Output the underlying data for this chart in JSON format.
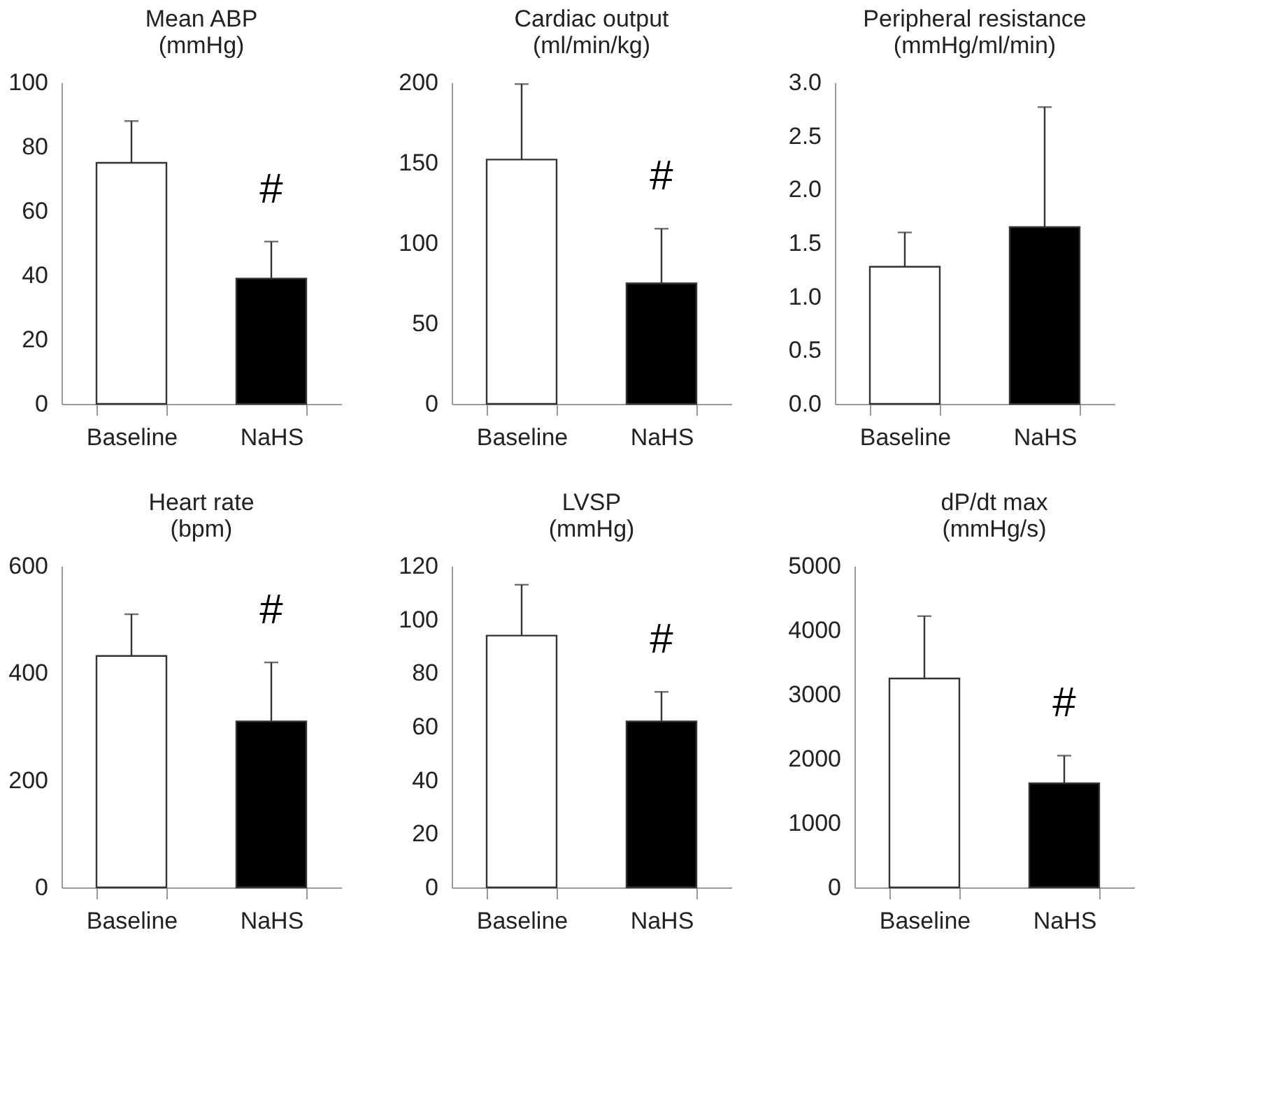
{
  "chart_data": [
    {
      "type": "bar",
      "title": "Mean ABP",
      "subtitle": "(mmHg)",
      "categories": [
        "Baseline",
        "NaHS"
      ],
      "values": [
        75,
        39
      ],
      "colors": [
        "#ffffff",
        "#000000"
      ],
      "errors": [
        [
          75,
          88
        ],
        [
          39,
          50.5
        ]
      ],
      "ylim": [
        0,
        100
      ],
      "yticks": [
        0,
        20,
        40,
        60,
        80,
        100
      ],
      "grid": false,
      "legend": false,
      "annotations": [
        "#"
      ]
    },
    {
      "type": "bar",
      "title": "Cardiac output",
      "subtitle": "(ml/min/kg)",
      "categories": [
        "Baseline",
        "NaHS"
      ],
      "values": [
        152,
        75
      ],
      "colors": [
        "#ffffff",
        "#000000"
      ],
      "errors": [
        [
          152,
          199
        ],
        [
          75,
          109
        ]
      ],
      "ylim": [
        0,
        200
      ],
      "yticks": [
        0,
        50,
        100,
        150,
        200
      ],
      "grid": false,
      "legend": false,
      "annotations": [
        "#"
      ]
    },
    {
      "type": "bar",
      "title": "Peripheral resistance",
      "subtitle": "(mmHg/ml/min)",
      "categories": [
        "Baseline",
        "NaHS"
      ],
      "values": [
        1.28,
        1.65
      ],
      "colors": [
        "#ffffff",
        "#000000"
      ],
      "errors": [
        [
          1.28,
          1.6
        ],
        [
          1.65,
          2.77
        ]
      ],
      "ylim": [
        0,
        3
      ],
      "yticks": [
        {
          "value": 0,
          "label": "0.0"
        },
        {
          "value": 0.5,
          "label": "0.5"
        },
        {
          "value": 1,
          "label": "1.0"
        },
        {
          "value": 1.5,
          "label": "1.5"
        },
        {
          "value": 2,
          "label": "2.0"
        },
        {
          "value": 2.5,
          "label": "2.5"
        },
        {
          "value": 3,
          "label": "3.0"
        }
      ],
      "grid": false,
      "legend": false
    },
    {
      "type": "bar",
      "title": "Heart rate",
      "subtitle": "(bpm)",
      "categories": [
        "Baseline",
        "NaHS"
      ],
      "values": [
        432,
        310
      ],
      "colors": [
        "#ffffff",
        "#000000"
      ],
      "errors": [
        [
          432,
          510
        ],
        [
          310,
          420
        ]
      ],
      "ylim": [
        0,
        600
      ],
      "yticks": [
        0,
        200,
        400,
        600
      ],
      "grid": false,
      "legend": false,
      "annotations": [
        "#"
      ]
    },
    {
      "type": "bar",
      "title": "LVSP",
      "subtitle": "(mmHg)",
      "categories": [
        "Baseline",
        "NaHS"
      ],
      "values": [
        94,
        62
      ],
      "colors": [
        "#ffffff",
        "#000000"
      ],
      "errors": [
        [
          94,
          113
        ],
        [
          62,
          73
        ]
      ],
      "ylim": [
        0,
        120
      ],
      "yticks": [
        0,
        20,
        40,
        60,
        80,
        100,
        120
      ],
      "grid": false,
      "legend": false,
      "annotations": [
        "#"
      ]
    },
    {
      "type": "bar",
      "title": "dP/dt max",
      "subtitle": "(mmHg/s)",
      "categories": [
        "Baseline",
        "NaHS"
      ],
      "values": [
        3250,
        1620
      ],
      "colors": [
        "#ffffff",
        "#000000"
      ],
      "errors": [
        [
          3250,
          4220
        ],
        [
          1620,
          2050
        ]
      ],
      "ylim": [
        0,
        5000
      ],
      "yticks": [
        0,
        1000,
        2000,
        3000,
        4000,
        5000
      ],
      "grid": false,
      "legend": false,
      "annotations": [
        "#"
      ]
    }
  ]
}
